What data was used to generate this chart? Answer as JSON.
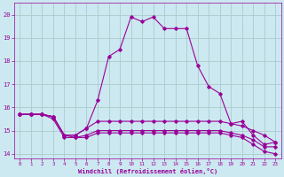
{
  "xlabel": "Windchill (Refroidissement éolien,°C)",
  "background_color": "#cce8f0",
  "grid_color": "#aacccc",
  "line_color": "#990099",
  "x_ticks": [
    0,
    1,
    2,
    3,
    4,
    5,
    6,
    7,
    8,
    9,
    10,
    11,
    12,
    13,
    14,
    15,
    16,
    17,
    18,
    19,
    20,
    21,
    22,
    23
  ],
  "y_ticks": [
    14,
    15,
    16,
    17,
    18,
    19,
    20
  ],
  "ylim": [
    13.8,
    20.5
  ],
  "xlim": [
    -0.5,
    23.5
  ],
  "series": [
    [
      15.7,
      15.7,
      15.7,
      15.6,
      14.8,
      14.8,
      15.1,
      16.3,
      18.2,
      18.5,
      19.9,
      19.7,
      19.9,
      19.4,
      19.4,
      19.4,
      17.8,
      16.9,
      16.6,
      15.3,
      15.4,
      14.8,
      14.4,
      14.5
    ],
    [
      15.7,
      15.7,
      15.7,
      15.6,
      14.8,
      14.8,
      15.1,
      15.4,
      15.4,
      15.4,
      15.4,
      15.4,
      15.4,
      15.4,
      15.4,
      15.4,
      15.4,
      15.4,
      15.4,
      15.3,
      15.2,
      15.0,
      14.8,
      14.5
    ],
    [
      15.7,
      15.7,
      15.7,
      15.6,
      14.8,
      14.7,
      14.8,
      15.0,
      15.0,
      15.0,
      15.0,
      15.0,
      15.0,
      15.0,
      15.0,
      15.0,
      15.0,
      15.0,
      15.0,
      14.9,
      14.8,
      14.6,
      14.3,
      14.3
    ],
    [
      15.7,
      15.7,
      15.7,
      15.5,
      14.7,
      14.7,
      14.7,
      14.9,
      14.9,
      14.9,
      14.9,
      14.9,
      14.9,
      14.9,
      14.9,
      14.9,
      14.9,
      14.9,
      14.9,
      14.8,
      14.7,
      14.4,
      14.1,
      14.0
    ]
  ]
}
